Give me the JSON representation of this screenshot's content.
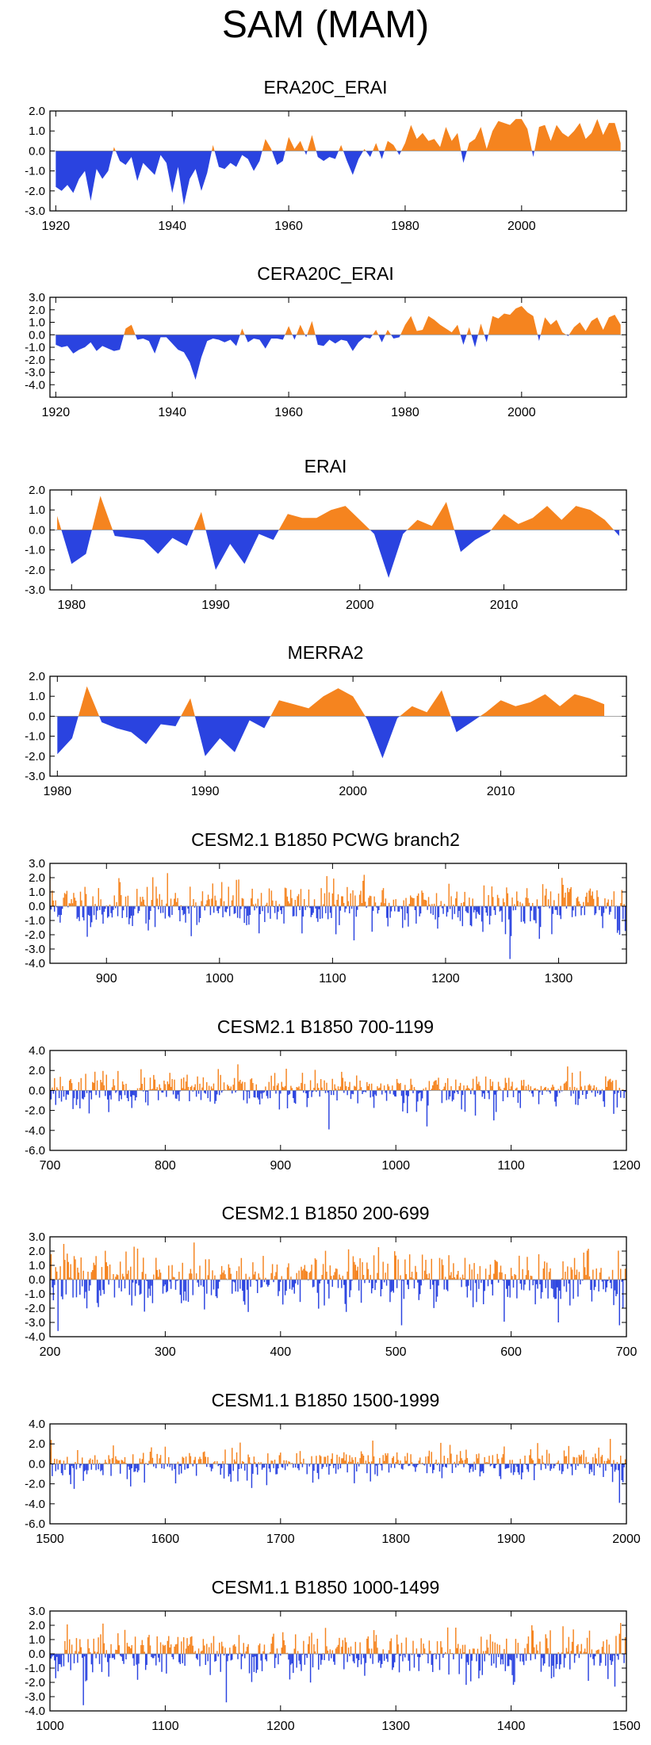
{
  "title": "SAM (MAM)",
  "colors": {
    "positive": "#f5841f",
    "negative": "#2a43e0",
    "axis": "#000000"
  },
  "chart_data": [
    {
      "type": "area",
      "title": "ERA20C_ERAI",
      "xlim": [
        1919,
        2018
      ],
      "ylim": [
        -3.0,
        2.0
      ],
      "yticks": [
        2.0,
        1.0,
        0.0,
        -1.0,
        -2.0,
        -3.0
      ],
      "ytick_labels": [
        "2.0",
        "1.0",
        "0.0",
        "-1.0",
        "-2.0",
        "-3.0"
      ],
      "xticks": [
        1920,
        1940,
        1960,
        1980,
        2000
      ],
      "xtick_labels": [
        "1920",
        "1940",
        "1960",
        "1980",
        "2000"
      ],
      "x": [
        1920,
        1921,
        1922,
        1923,
        1924,
        1925,
        1926,
        1927,
        1928,
        1929,
        1930,
        1931,
        1932,
        1933,
        1934,
        1935,
        1936,
        1937,
        1938,
        1939,
        1940,
        1941,
        1942,
        1943,
        1944,
        1945,
        1946,
        1947,
        1948,
        1949,
        1950,
        1951,
        1952,
        1953,
        1954,
        1955,
        1956,
        1957,
        1958,
        1959,
        1960,
        1961,
        1962,
        1963,
        1964,
        1965,
        1966,
        1967,
        1968,
        1969,
        1970,
        1971,
        1972,
        1973,
        1974,
        1975,
        1976,
        1977,
        1978,
        1979,
        1980,
        1981,
        1982,
        1983,
        1984,
        1985,
        1986,
        1987,
        1988,
        1989,
        1990,
        1991,
        1992,
        1993,
        1994,
        1995,
        1996,
        1997,
        1998,
        1999,
        2000,
        2001,
        2002,
        2003,
        2004,
        2005,
        2006,
        2007,
        2008,
        2009,
        2010,
        2011,
        2012,
        2013,
        2014,
        2015,
        2016,
        2017
      ],
      "values": [
        -1.8,
        -2.0,
        -1.7,
        -2.1,
        -1.4,
        -1.0,
        -2.5,
        -0.9,
        -1.4,
        -1.0,
        0.2,
        -0.5,
        -0.7,
        -0.3,
        -1.5,
        -0.6,
        -0.9,
        -1.2,
        -0.2,
        -0.6,
        -2.1,
        -0.8,
        -2.7,
        -1.4,
        -0.9,
        -2.0,
        -1.1,
        0.3,
        -0.8,
        -0.9,
        -0.6,
        -0.8,
        -0.2,
        -0.4,
        -1.0,
        -0.5,
        0.6,
        0.1,
        -0.7,
        -0.5,
        0.7,
        0.1,
        0.5,
        -0.2,
        0.8,
        -0.3,
        -0.5,
        -0.3,
        -0.4,
        0.3,
        -0.5,
        -1.2,
        -0.4,
        0.1,
        -0.3,
        0.4,
        -0.4,
        0.5,
        0.3,
        -0.2,
        0.4,
        1.3,
        0.6,
        0.9,
        0.5,
        0.6,
        0.2,
        1.2,
        0.5,
        0.9,
        -0.6,
        0.4,
        0.6,
        1.2,
        0.1,
        1.0,
        1.5,
        1.4,
        1.3,
        1.6,
        1.6,
        1.1,
        -0.3,
        1.2,
        1.3,
        0.5,
        1.3,
        0.9,
        0.7,
        1.0,
        1.4,
        0.6,
        0.9,
        1.6,
        0.8,
        1.4,
        1.4,
        0.4
      ]
    },
    {
      "type": "area",
      "title": "CERA20C_ERAI",
      "xlim": [
        1919,
        2018
      ],
      "ylim": [
        -5.0,
        3.0
      ],
      "yticks": [
        3.0,
        2.0,
        1.0,
        0.0,
        -1.0,
        -2.0,
        -3.0,
        -4.0
      ],
      "ytick_labels": [
        "3.0",
        "2.0",
        "1.0",
        "0.0",
        "-1.0",
        "-2.0",
        "-3.0",
        "-4.0"
      ],
      "xticks": [
        1920,
        1940,
        1960,
        1980,
        2000
      ],
      "xtick_labels": [
        "1920",
        "1940",
        "1960",
        "1980",
        "2000"
      ],
      "x": [
        1920,
        1921,
        1922,
        1923,
        1924,
        1925,
        1926,
        1927,
        1928,
        1929,
        1930,
        1931,
        1932,
        1933,
        1934,
        1935,
        1936,
        1937,
        1938,
        1939,
        1940,
        1941,
        1942,
        1943,
        1944,
        1945,
        1946,
        1947,
        1948,
        1949,
        1950,
        1951,
        1952,
        1953,
        1954,
        1955,
        1956,
        1957,
        1958,
        1959,
        1960,
        1961,
        1962,
        1963,
        1964,
        1965,
        1966,
        1967,
        1968,
        1969,
        1970,
        1971,
        1972,
        1973,
        1974,
        1975,
        1976,
        1977,
        1978,
        1979,
        1980,
        1981,
        1982,
        1983,
        1984,
        1985,
        1986,
        1987,
        1988,
        1989,
        1990,
        1991,
        1992,
        1993,
        1994,
        1995,
        1996,
        1997,
        1998,
        1999,
        2000,
        2001,
        2002,
        2003,
        2004,
        2005,
        2006,
        2007,
        2008,
        2009,
        2010,
        2011,
        2012,
        2013,
        2014,
        2015,
        2016,
        2017
      ],
      "values": [
        -0.8,
        -1.0,
        -0.9,
        -1.5,
        -1.2,
        -1.0,
        -0.6,
        -1.3,
        -0.9,
        -1.1,
        -1.3,
        -1.2,
        0.5,
        0.8,
        -0.4,
        -0.3,
        -0.5,
        -1.5,
        -0.2,
        -0.2,
        -0.7,
        -1.2,
        -1.4,
        -2.2,
        -3.6,
        -1.8,
        -0.5,
        -0.3,
        -0.4,
        -0.6,
        -0.4,
        -0.9,
        0.5,
        -0.6,
        -0.3,
        -0.4,
        -1.1,
        -0.3,
        -0.3,
        -0.4,
        0.7,
        -0.4,
        0.8,
        -0.2,
        1.1,
        -0.8,
        -0.9,
        -0.4,
        -0.7,
        -0.4,
        -0.5,
        -1.3,
        -0.6,
        -0.2,
        -0.3,
        0.4,
        -0.6,
        0.4,
        -0.3,
        -0.2,
        0.8,
        1.5,
        0.3,
        0.4,
        1.5,
        1.2,
        0.8,
        0.5,
        0.2,
        0.8,
        -0.8,
        0.6,
        -1.0,
        0.9,
        -0.6,
        1.5,
        1.3,
        1.7,
        1.6,
        2.1,
        2.3,
        1.8,
        1.5,
        -0.5,
        1.4,
        0.8,
        1.2,
        0.2,
        -0.1,
        0.6,
        1.0,
        0.3,
        1.1,
        1.4,
        0.4,
        1.4,
        1.6,
        0.8
      ]
    },
    {
      "type": "area",
      "title": "ERAI",
      "xlim": [
        1978.5,
        2018.5
      ],
      "ylim": [
        -3.0,
        2.0
      ],
      "yticks": [
        2.0,
        1.0,
        0.0,
        -1.0,
        -2.0,
        -3.0
      ],
      "ytick_labels": [
        "2.0",
        "1.0",
        "0.0",
        "-1.0",
        "-2.0",
        "-3.0"
      ],
      "xticks": [
        1980,
        1990,
        2000,
        2010
      ],
      "xtick_labels": [
        "1980",
        "1990",
        "2000",
        "2010"
      ],
      "x": [
        1979,
        1980,
        1981,
        1982,
        1983,
        1984,
        1985,
        1986,
        1987,
        1988,
        1989,
        1990,
        1991,
        1992,
        1993,
        1994,
        1995,
        1996,
        1997,
        1998,
        1999,
        2000,
        2001,
        2002,
        2003,
        2004,
        2005,
        2006,
        2007,
        2008,
        2009,
        2010,
        2011,
        2012,
        2013,
        2014,
        2015,
        2016,
        2017,
        2018
      ],
      "values": [
        0.7,
        -1.7,
        -1.2,
        1.7,
        -0.3,
        -0.4,
        -0.5,
        -1.2,
        -0.4,
        -0.8,
        0.9,
        -2.0,
        -0.7,
        -1.7,
        -0.2,
        -0.5,
        0.8,
        0.6,
        0.6,
        1.0,
        1.2,
        0.5,
        -0.2,
        -2.4,
        -0.2,
        0.5,
        0.2,
        1.4,
        -1.1,
        -0.5,
        -0.1,
        0.8,
        0.3,
        0.6,
        1.2,
        0.5,
        1.2,
        1.0,
        0.5,
        -0.3
      ]
    },
    {
      "type": "area",
      "title": "MERRA2",
      "xlim": [
        1979.5,
        2018.5
      ],
      "ylim": [
        -3.0,
        2.0
      ],
      "yticks": [
        2.0,
        1.0,
        0.0,
        -1.0,
        -2.0,
        -3.0
      ],
      "ytick_labels": [
        "2.0",
        "1.0",
        "0.0",
        "-1.0",
        "-2.0",
        "-3.0"
      ],
      "xticks": [
        1980,
        1990,
        2000,
        2010
      ],
      "xtick_labels": [
        "1980",
        "1990",
        "2000",
        "2010"
      ],
      "x": [
        1980,
        1981,
        1982,
        1983,
        1984,
        1985,
        1986,
        1987,
        1988,
        1989,
        1990,
        1991,
        1992,
        1993,
        1994,
        1995,
        1996,
        1997,
        1998,
        1999,
        2000,
        2001,
        2002,
        2003,
        2004,
        2005,
        2006,
        2007,
        2008,
        2009,
        2010,
        2011,
        2012,
        2013,
        2014,
        2015,
        2016,
        2017
      ],
      "values": [
        -1.9,
        -1.1,
        1.5,
        -0.3,
        -0.6,
        -0.8,
        -1.4,
        -0.4,
        -0.5,
        0.9,
        -2.0,
        -1.1,
        -1.8,
        -0.2,
        -0.6,
        0.8,
        0.6,
        0.4,
        1.0,
        1.4,
        1.0,
        -0.2,
        -2.1,
        -0.1,
        0.5,
        0.2,
        1.3,
        -0.8,
        -0.3,
        0.2,
        0.8,
        0.5,
        0.7,
        1.1,
        0.5,
        1.1,
        0.9,
        0.6
      ]
    },
    {
      "type": "bar",
      "title": "CESM2.1 B1850 PCWG branch2",
      "xlim": [
        850,
        1360
      ],
      "ylim": [
        -4.0,
        3.0
      ],
      "yticks": [
        3.0,
        2.0,
        1.0,
        0.0,
        -1.0,
        -2.0,
        -3.0,
        -4.0
      ],
      "ytick_labels": [
        "3.0",
        "2.0",
        "1.0",
        "0.0",
        "-1.0",
        "-2.0",
        "-3.0",
        "-4.0"
      ],
      "xticks": [
        900,
        1000,
        1100,
        1200,
        1300
      ],
      "xtick_labels": [
        "900",
        "1000",
        "1100",
        "1200",
        "1300"
      ],
      "series_range": [
        850,
        1359
      ],
      "seed": 11,
      "amplitude": 0.85,
      "extremes": [
        [
          850,
          2.1
        ],
        [
          1128,
          2.2
        ],
        [
          1257,
          -3.7
        ],
        [
          1354,
          -2.0
        ]
      ]
    },
    {
      "type": "bar",
      "title": "CESM2.1 B1850 700-1199",
      "xlim": [
        700,
        1200
      ],
      "ylim": [
        -6.0,
        4.0
      ],
      "yticks": [
        4.0,
        2.0,
        0.0,
        -2.0,
        -4.0,
        -6.0
      ],
      "ytick_labels": [
        "4.0",
        "2.0",
        "0.0",
        "-2.0",
        "-4.0",
        "-6.0"
      ],
      "xticks": [
        700,
        800,
        900,
        1000,
        1100,
        1200
      ],
      "xtick_labels": [
        "700",
        "800",
        "900",
        "1000",
        "1100",
        "1200"
      ],
      "series_range": [
        700,
        1199
      ],
      "seed": 23,
      "amplitude": 0.85,
      "extremes": [
        [
          942,
          -3.9
        ],
        [
          1027,
          -3.6
        ],
        [
          1149,
          2.4
        ],
        [
          1085,
          -3.0
        ]
      ]
    },
    {
      "type": "bar",
      "title": "CESM2.1 B1850 200-699",
      "xlim": [
        200,
        700
      ],
      "ylim": [
        -4.0,
        3.0
      ],
      "yticks": [
        3.0,
        2.0,
        1.0,
        0.0,
        -1.0,
        -2.0,
        -3.0,
        -4.0
      ],
      "ytick_labels": [
        "3.0",
        "2.0",
        "1.0",
        "0.0",
        "-1.0",
        "-2.0",
        "-3.0",
        "-4.0"
      ],
      "xticks": [
        200,
        300,
        400,
        500,
        600,
        700
      ],
      "xtick_labels": [
        "200",
        "300",
        "400",
        "500",
        "600",
        "700"
      ],
      "series_range": [
        200,
        699
      ],
      "seed": 37,
      "amplitude": 0.95,
      "extremes": [
        [
          207,
          -3.6
        ],
        [
          212,
          2.5
        ],
        [
          325,
          2.6
        ],
        [
          505,
          -3.2
        ],
        [
          641,
          -3.0
        ],
        [
          694,
          -3.2
        ]
      ]
    },
    {
      "type": "bar",
      "title": "CESM1.1 B1850 1500-1999",
      "xlim": [
        1500,
        2000
      ],
      "ylim": [
        -6.0,
        4.0
      ],
      "yticks": [
        4.0,
        2.0,
        0.0,
        -2.0,
        -4.0,
        -6.0
      ],
      "ytick_labels": [
        "4.0",
        "2.0",
        "0.0",
        "-2.0",
        "-4.0",
        "-6.0"
      ],
      "xticks": [
        1500,
        1600,
        1700,
        1800,
        1900,
        2000
      ],
      "xtick_labels": [
        "1500",
        "1600",
        "1700",
        "1800",
        "1900",
        "2000"
      ],
      "series_range": [
        1500,
        1999
      ],
      "seed": 53,
      "amplitude": 0.85,
      "extremes": [
        [
          1501,
          2.4
        ],
        [
          1521,
          -2.5
        ],
        [
          1986,
          2.5
        ],
        [
          1994,
          -3.9
        ]
      ]
    },
    {
      "type": "bar",
      "title": "CESM1.1 B1850 1000-1499",
      "xlim": [
        1000,
        1500
      ],
      "ylim": [
        -4.0,
        3.0
      ],
      "yticks": [
        3.0,
        2.0,
        1.0,
        0.0,
        -1.0,
        -2.0,
        -3.0,
        -4.0
      ],
      "ytick_labels": [
        "3.0",
        "2.0",
        "1.0",
        "0.0",
        "-1.0",
        "-2.0",
        "-3.0",
        "-4.0"
      ],
      "xticks": [
        1000,
        1100,
        1200,
        1300,
        1400,
        1500
      ],
      "xtick_labels": [
        "1000",
        "1100",
        "1200",
        "1300",
        "1400",
        "1500"
      ],
      "series_range": [
        1000,
        1499
      ],
      "seed": 71,
      "amplitude": 0.9,
      "extremes": [
        [
          1029,
          -3.6
        ],
        [
          1153,
          -3.4
        ],
        [
          1418,
          2.0
        ],
        [
          1490,
          -2.3
        ]
      ]
    }
  ]
}
